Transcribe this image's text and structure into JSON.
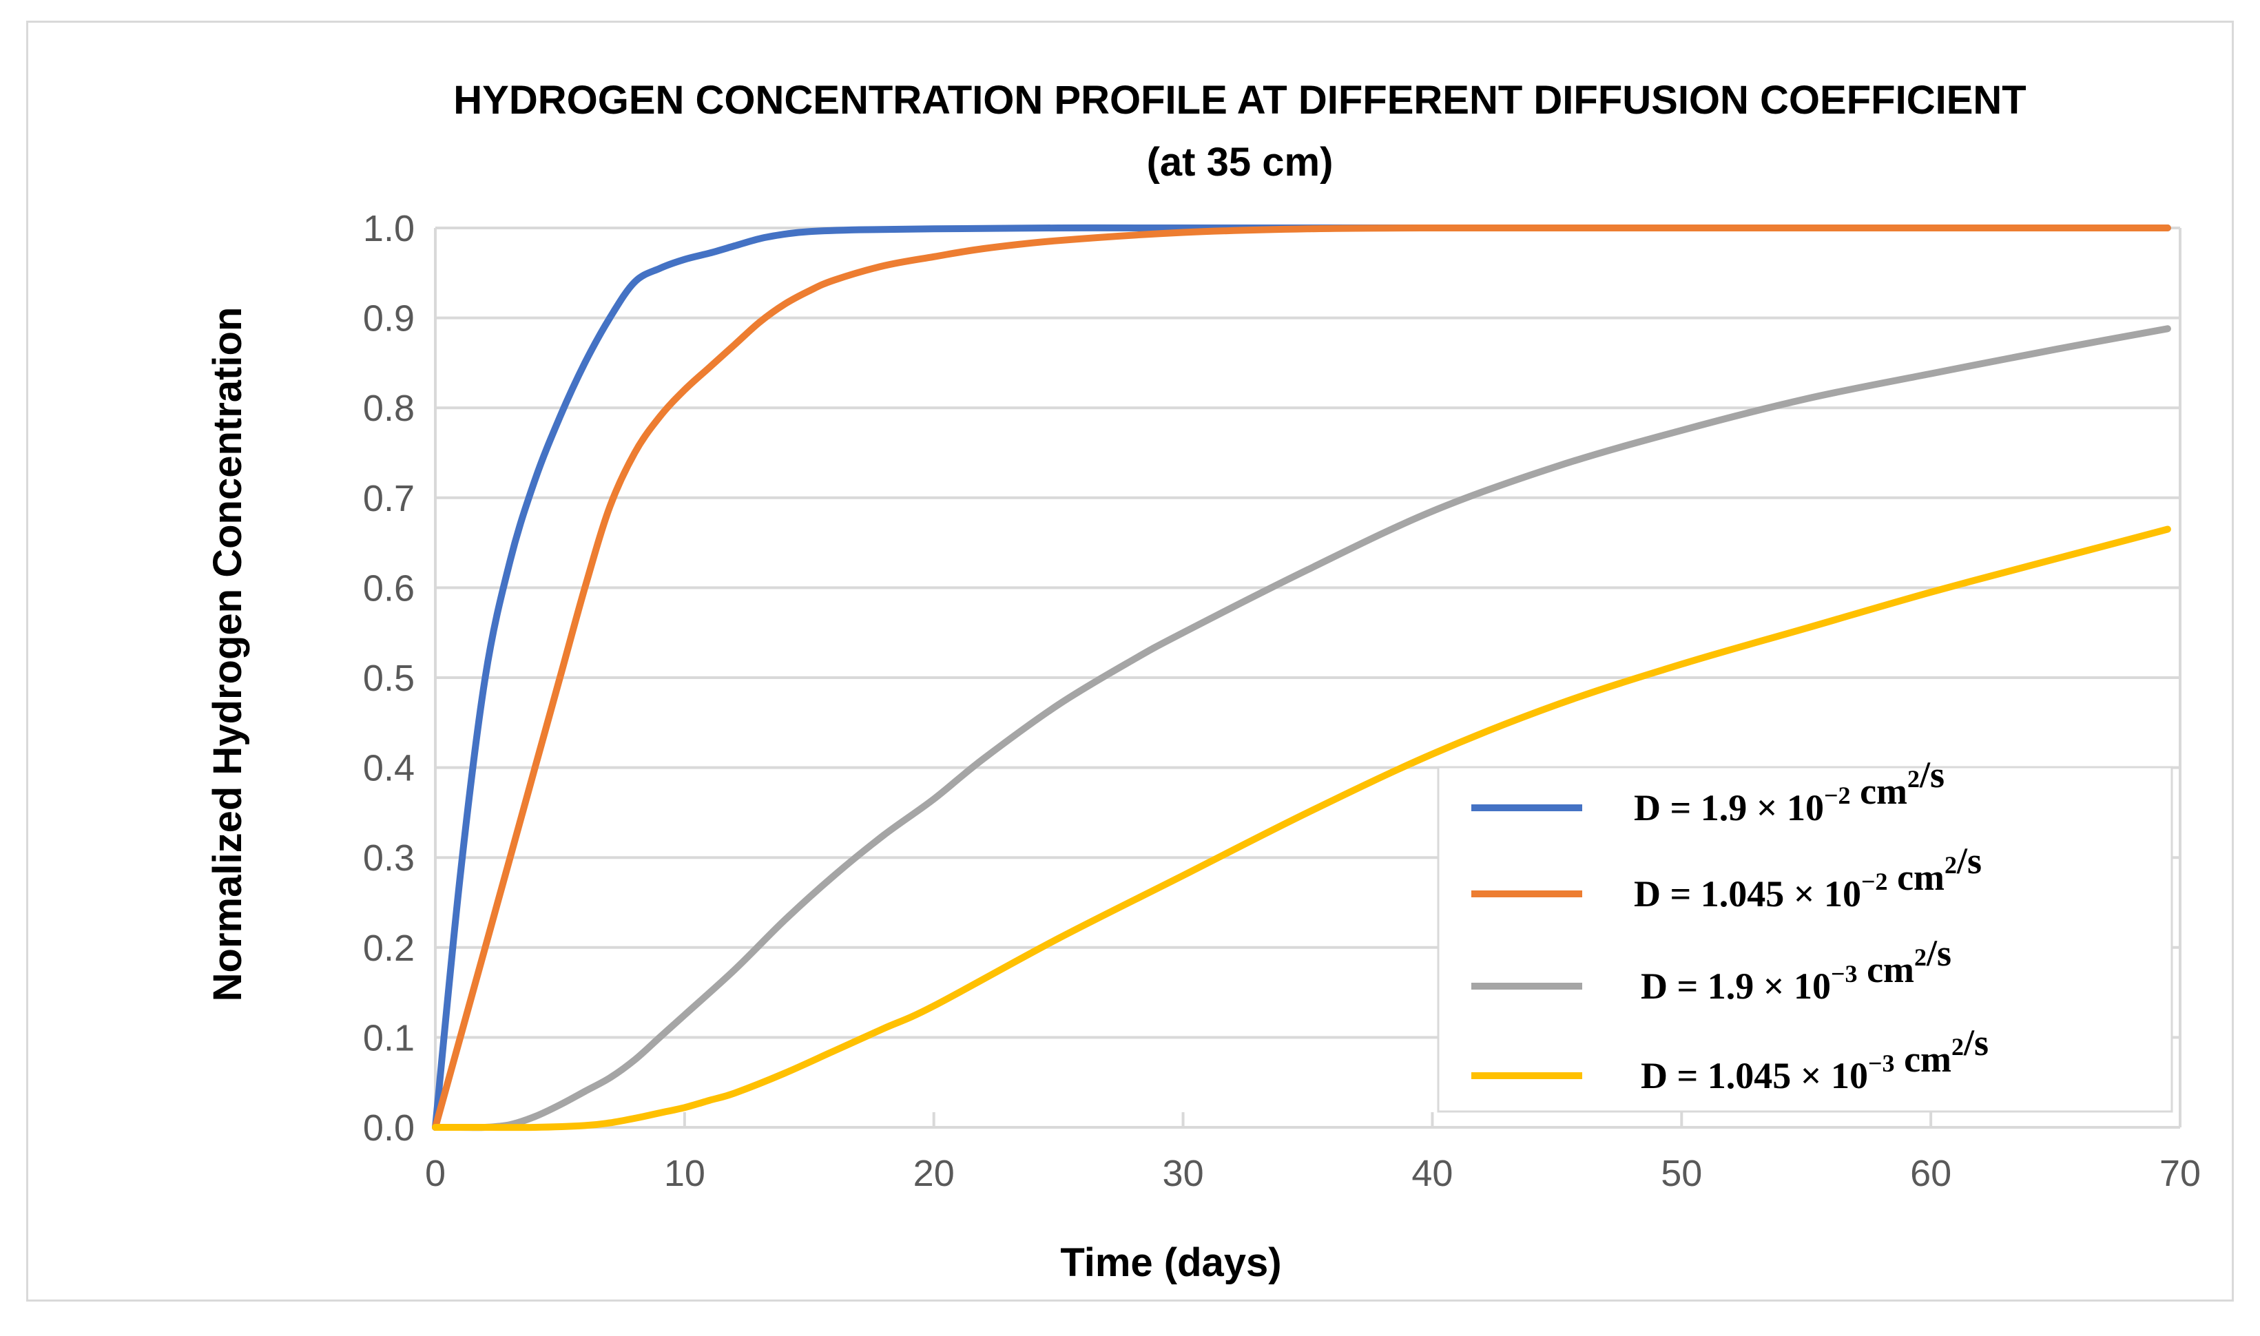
{
  "chart_data": {
    "type": "line",
    "title": "HYDROGEN CONCENTRATION PROFILE AT DIFFERENT DIFFUSION COEFFICIENT",
    "subtitle": "(at 35 cm)",
    "xlabel": "Time (days)",
    "ylabel": "Normalized Hydrogen Concentration",
    "xlim": [
      0,
      70
    ],
    "ylim": [
      0,
      1.0
    ],
    "xticks": [
      0,
      10,
      20,
      30,
      40,
      50,
      60,
      70
    ],
    "yticks": [
      0.0,
      0.1,
      0.2,
      0.3,
      0.4,
      0.5,
      0.6,
      0.7,
      0.8,
      0.9,
      1.0
    ],
    "ytick_labels": [
      "0.0",
      "0.1",
      "0.2",
      "0.3",
      "0.4",
      "0.5",
      "0.6",
      "0.7",
      "0.8",
      "0.9",
      "1.0"
    ],
    "grid": true,
    "legend_position": "bottom-right",
    "series": [
      {
        "name": "D = 1.9 × 10^-2 cm^2/s",
        "legend": {
          "prefix": "D = 1.9 × 10",
          "exp": "−2",
          "unit": " cm",
          "unit_exp": "2",
          "suffix": "/s"
        },
        "color": "#4472c4",
        "x": [
          0,
          1,
          2,
          3,
          4,
          5,
          6,
          7,
          8,
          9,
          10,
          11,
          12,
          13,
          14,
          15,
          17,
          20,
          25,
          30,
          40,
          50,
          60,
          69.5
        ],
        "y": [
          0,
          0.28,
          0.5,
          0.63,
          0.72,
          0.79,
          0.85,
          0.9,
          0.94,
          0.955,
          0.965,
          0.972,
          0.98,
          0.988,
          0.993,
          0.996,
          0.998,
          0.999,
          1.0,
          1.0,
          1.0,
          1.0,
          1.0,
          1.0
        ]
      },
      {
        "name": "D = 1.045 × 10^-2 cm^2/s",
        "legend": {
          "prefix": "D = 1.045 × 10",
          "exp": "−2",
          "unit": " cm",
          "unit_exp": "2",
          "suffix": "/s"
        },
        "color": "#ed7d31",
        "x": [
          0,
          1,
          2,
          3,
          4,
          5,
          6,
          7,
          8,
          9,
          10,
          11,
          12,
          13,
          14,
          15,
          16,
          18,
          20,
          22,
          25,
          30,
          35,
          40,
          50,
          60,
          69.5
        ],
        "y": [
          0,
          0.1,
          0.2,
          0.3,
          0.4,
          0.5,
          0.6,
          0.69,
          0.75,
          0.79,
          0.82,
          0.845,
          0.87,
          0.895,
          0.915,
          0.93,
          0.942,
          0.958,
          0.968,
          0.977,
          0.986,
          0.995,
          0.999,
          1.0,
          1.0,
          1.0,
          1.0
        ]
      },
      {
        "name": "D = 1.9 × 10^-3 cm^2/s",
        "legend": {
          "prefix": "D = 1.9 × 10",
          "exp": "−3",
          "unit": " cm",
          "unit_exp": "2",
          "suffix": "/s"
        },
        "color": "#a5a5a5",
        "x": [
          0,
          1,
          2,
          3,
          4,
          5,
          6,
          7,
          8,
          9,
          10,
          12,
          14,
          16,
          18,
          20,
          22,
          25,
          28,
          30,
          35,
          40,
          45,
          50,
          55,
          60,
          65,
          69.5
        ],
        "y": [
          0,
          0,
          0,
          0.003,
          0.012,
          0.025,
          0.04,
          0.055,
          0.075,
          0.1,
          0.125,
          0.175,
          0.23,
          0.28,
          0.325,
          0.365,
          0.41,
          0.47,
          0.52,
          0.55,
          0.62,
          0.685,
          0.735,
          0.775,
          0.81,
          0.838,
          0.865,
          0.888
        ]
      },
      {
        "name": "D = 1.045 × 10^-3 cm^2/s",
        "legend": {
          "prefix": "D = 1.045 × 10",
          "exp": "−3",
          "unit": " cm",
          "unit_exp": "2",
          "suffix": "/s"
        },
        "color": "#ffc000",
        "x": [
          0,
          2,
          4,
          6,
          7,
          8,
          9,
          10,
          11,
          12,
          14,
          16,
          18,
          20,
          25,
          30,
          35,
          40,
          45,
          50,
          55,
          60,
          65,
          69.5
        ],
        "y": [
          0,
          0,
          0,
          0.002,
          0.005,
          0.01,
          0.016,
          0.022,
          0.03,
          0.038,
          0.06,
          0.085,
          0.11,
          0.135,
          0.21,
          0.28,
          0.35,
          0.415,
          0.47,
          0.515,
          0.555,
          0.595,
          0.632,
          0.665
        ]
      }
    ]
  }
}
